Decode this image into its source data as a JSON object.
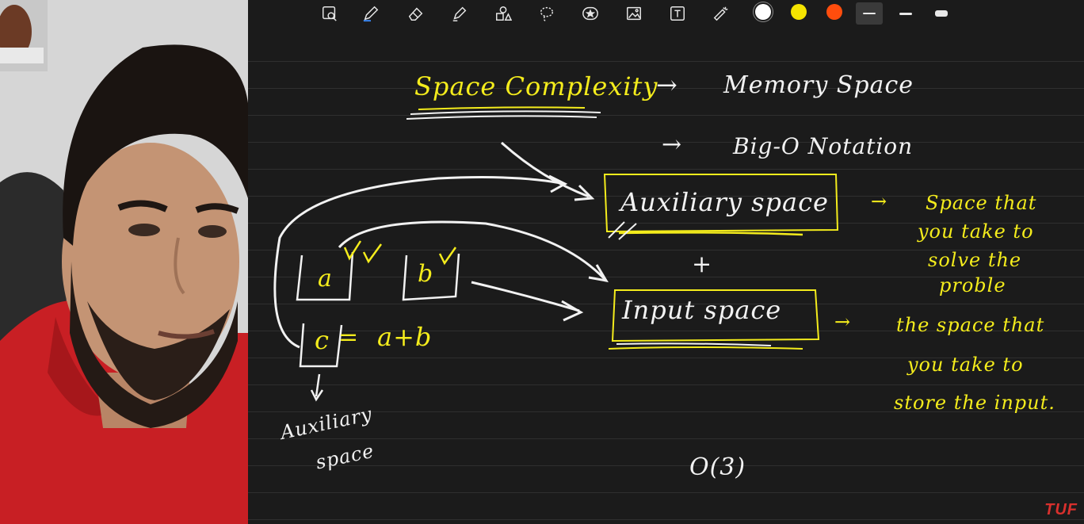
{
  "colors": {
    "ink_white": "#f2f2f2",
    "ink_yellow": "#f4ec1c",
    "canvas_bg": "#1b1b1b",
    "swatch_white": "#ffffff",
    "swatch_yellow": "#f5e400",
    "swatch_orange": "#ff4d0d",
    "logo_red": "#d8302d"
  },
  "toolbar": {
    "tools": [
      {
        "icon": "page-zoom-icon"
      },
      {
        "icon": "pen-icon"
      },
      {
        "icon": "eraser-icon"
      },
      {
        "icon": "highlighter-icon"
      },
      {
        "icon": "shapes-icon"
      },
      {
        "icon": "lasso-icon"
      },
      {
        "icon": "sticker-icon"
      },
      {
        "icon": "image-icon"
      },
      {
        "icon": "text-icon"
      },
      {
        "icon": "laser-pointer-icon"
      }
    ],
    "colors": [
      "white",
      "yellow",
      "orange"
    ],
    "line_sizes": [
      "thin",
      "medium",
      "thick"
    ],
    "selected_size": "thin"
  },
  "notes": {
    "space_complexity": "Space Complexity",
    "arrow1": "→",
    "memory_space": "Memory Space",
    "arrow2": "→",
    "big_o_notation": "Big-O Notation",
    "auxiliary_space": "Auxiliary space",
    "plus": "+",
    "input_space": "Input space",
    "aux_desc": [
      "Space that",
      "you take to",
      "solve the",
      "proble"
    ],
    "input_desc": [
      "the space that",
      "you take to",
      "store the input."
    ],
    "var_a": "a",
    "var_b": "b",
    "var_c": "c",
    "equals": "=",
    "a_plus_b": "a+b",
    "side_label": [
      "Auxiliary",
      "space"
    ],
    "big_o_result": "O(3)",
    "arrow_right": "→",
    "arrow_right_2": "→",
    "arrow_down": "↓"
  },
  "logo": "TUF"
}
